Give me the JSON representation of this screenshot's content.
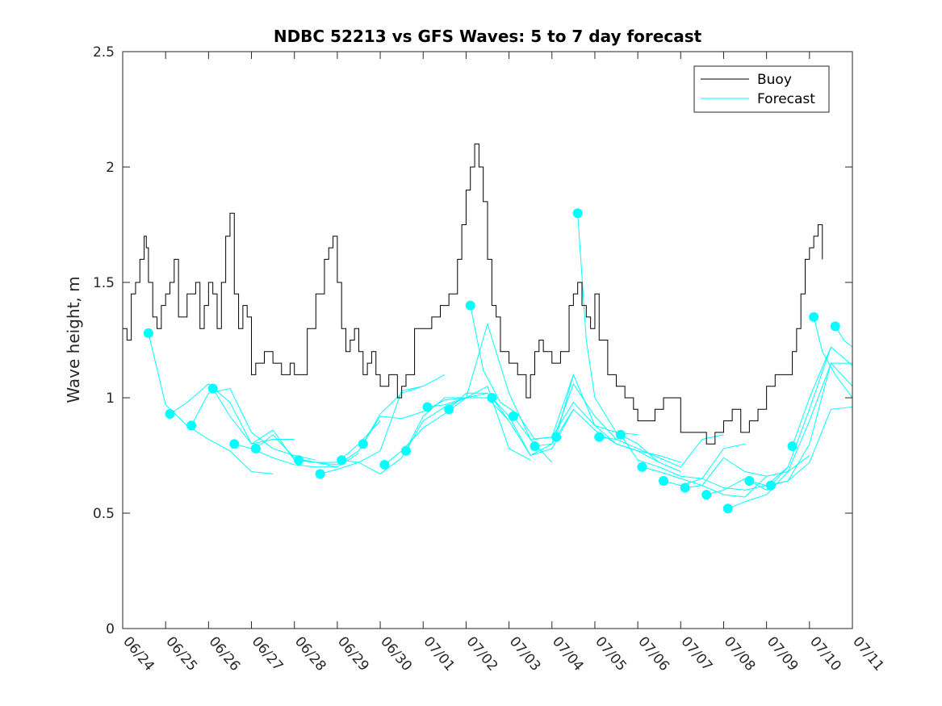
{
  "chart_data": {
    "type": "line",
    "title": "NDBC 52213 vs GFS Waves: 5 to 7 day forecast",
    "xlabel": "",
    "ylabel": "Wave height, m",
    "ylim": [
      0,
      2.5
    ],
    "yticks": [
      "0",
      "0.5",
      "1",
      "1.5",
      "2",
      "2.5"
    ],
    "xlim": [
      0,
      17
    ],
    "xticks": [
      "06/24",
      "06/25",
      "06/26",
      "06/27",
      "06/28",
      "06/29",
      "06/30",
      "07/01",
      "07/02",
      "07/03",
      "07/04",
      "07/05",
      "07/06",
      "07/07",
      "07/08",
      "07/09",
      "07/10",
      "07/11"
    ],
    "x_unit": "days since 06/24",
    "grid": false,
    "legend": {
      "position": "top-right",
      "entries": [
        "Buoy",
        "Forecast"
      ]
    },
    "colors": {
      "buoy": "#000000",
      "forecast": "#00ffff"
    },
    "series": [
      {
        "name": "Buoy",
        "x": [
          0,
          0.1,
          0.2,
          0.3,
          0.4,
          0.5,
          0.55,
          0.6,
          0.7,
          0.8,
          0.9,
          1.0,
          1.1,
          1.2,
          1.3,
          1.5,
          1.7,
          1.8,
          1.9,
          2.0,
          2.1,
          2.2,
          2.3,
          2.4,
          2.5,
          2.6,
          2.7,
          2.8,
          2.9,
          3.0,
          3.1,
          3.3,
          3.5,
          3.7,
          3.9,
          4.0,
          4.2,
          4.3,
          4.5,
          4.7,
          4.8,
          4.9,
          5.0,
          5.1,
          5.2,
          5.3,
          5.4,
          5.5,
          5.6,
          5.7,
          5.8,
          5.9,
          6.0,
          6.2,
          6.4,
          6.5,
          6.6,
          6.8,
          7.0,
          7.2,
          7.4,
          7.6,
          7.8,
          7.9,
          8.0,
          8.1,
          8.2,
          8.3,
          8.4,
          8.5,
          8.6,
          8.7,
          8.8,
          9.0,
          9.2,
          9.4,
          9.5,
          9.6,
          9.7,
          9.8,
          10.0,
          10.2,
          10.4,
          10.5,
          10.6,
          10.7,
          10.8,
          10.9,
          11.0,
          11.1,
          11.3,
          11.5,
          11.7,
          11.9,
          12.0,
          12.2,
          12.4,
          12.6,
          12.8,
          13.0,
          13.2,
          13.4,
          13.6,
          13.8,
          14.0,
          14.2,
          14.4,
          14.6,
          14.8,
          15.0,
          15.2,
          15.4,
          15.6,
          15.7,
          15.8,
          15.9,
          16.0,
          16.1,
          16.2,
          16.3
        ],
        "y": [
          1.3,
          1.25,
          1.45,
          1.5,
          1.6,
          1.7,
          1.65,
          1.5,
          1.35,
          1.3,
          1.4,
          1.45,
          1.5,
          1.6,
          1.35,
          1.45,
          1.5,
          1.3,
          1.4,
          1.5,
          1.45,
          1.3,
          1.5,
          1.7,
          1.8,
          1.45,
          1.3,
          1.4,
          1.35,
          1.1,
          1.15,
          1.2,
          1.15,
          1.1,
          1.15,
          1.1,
          1.1,
          1.3,
          1.45,
          1.6,
          1.65,
          1.7,
          1.5,
          1.3,
          1.2,
          1.25,
          1.3,
          1.2,
          1.1,
          1.15,
          1.2,
          1.1,
          1.05,
          1.1,
          1.0,
          1.05,
          1.1,
          1.3,
          1.3,
          1.35,
          1.4,
          1.45,
          1.6,
          1.75,
          1.9,
          2.0,
          2.1,
          2.0,
          1.85,
          1.6,
          1.4,
          1.35,
          1.2,
          1.15,
          1.1,
          1.0,
          1.1,
          1.2,
          1.25,
          1.2,
          1.15,
          1.2,
          1.4,
          1.45,
          1.5,
          1.4,
          1.35,
          1.3,
          1.45,
          1.25,
          1.1,
          1.05,
          1.0,
          0.95,
          0.9,
          0.9,
          0.95,
          1.0,
          1.0,
          0.85,
          0.85,
          0.85,
          0.8,
          0.85,
          0.9,
          0.95,
          0.85,
          0.9,
          0.95,
          1.05,
          1.1,
          1.1,
          1.2,
          1.3,
          1.45,
          1.6,
          1.65,
          1.7,
          1.75,
          1.6
        ]
      }
    ],
    "forecast_runs": [
      {
        "x": [
          0.6,
          1.0,
          1.5,
          2.0,
          2.5,
          3.0,
          3.5
        ],
        "y": [
          1.28,
          0.97,
          0.88,
          0.82,
          0.77,
          0.68,
          0.67
        ]
      },
      {
        "x": [
          1.1,
          1.5,
          2.0,
          2.5,
          3.0,
          3.5,
          4.0
        ],
        "y": [
          0.93,
          0.98,
          1.06,
          0.98,
          0.8,
          0.82,
          0.82
        ]
      },
      {
        "x": [
          1.6,
          2.0,
          2.5,
          3.0,
          3.5,
          4.0,
          4.5
        ],
        "y": [
          0.88,
          1.02,
          1.04,
          0.85,
          0.78,
          0.75,
          0.73
        ]
      },
      {
        "x": [
          2.1,
          2.5,
          3.0,
          3.5,
          4.0,
          4.5,
          5.0
        ],
        "y": [
          1.04,
          0.92,
          0.8,
          0.86,
          0.73,
          0.72,
          0.7
        ]
      },
      {
        "x": [
          2.6,
          3.0,
          3.5,
          4.0,
          4.5,
          5.0,
          5.5
        ],
        "y": [
          0.8,
          0.78,
          0.74,
          0.71,
          0.7,
          0.7,
          0.76
        ]
      },
      {
        "x": [
          3.1,
          3.5,
          4.0,
          4.5,
          5.0,
          5.5,
          6.0
        ],
        "y": [
          0.78,
          0.84,
          0.74,
          0.72,
          0.72,
          0.8,
          0.9
        ]
      },
      {
        "x": [
          4.1,
          4.5,
          5.0,
          5.5,
          6.0,
          6.5,
          7.0
        ],
        "y": [
          0.73,
          0.72,
          0.71,
          0.77,
          0.93,
          1.02,
          1.05
        ]
      },
      {
        "x": [
          4.6,
          5.0,
          5.5,
          6.0,
          6.5,
          7.0,
          7.5
        ],
        "y": [
          0.67,
          0.69,
          0.72,
          0.77,
          1.03,
          1.05,
          1.1
        ]
      },
      {
        "x": [
          5.1,
          5.5,
          6.0,
          6.5,
          7.0,
          7.5,
          8.0
        ],
        "y": [
          0.73,
          0.72,
          0.67,
          0.74,
          0.92,
          1.0,
          1.0
        ]
      },
      {
        "x": [
          5.6,
          6.0,
          6.5,
          7.0,
          7.5,
          8.0,
          8.5
        ],
        "y": [
          0.8,
          0.92,
          0.91,
          0.94,
          0.99,
          1.0,
          1.02
        ]
      },
      {
        "x": [
          6.1,
          6.5,
          7.0,
          7.5,
          8.0,
          8.5,
          9.0
        ],
        "y": [
          0.71,
          0.77,
          0.87,
          0.93,
          1.0,
          1.0,
          0.9
        ]
      },
      {
        "x": [
          6.6,
          7.0,
          7.5,
          8.0,
          8.5,
          9.0,
          9.5
        ],
        "y": [
          0.77,
          0.9,
          0.96,
          1.0,
          1.05,
          0.78,
          0.73
        ]
      },
      {
        "x": [
          7.1,
          7.5,
          8.0,
          8.5,
          9.0,
          9.5,
          10.0
        ],
        "y": [
          0.96,
          0.97,
          1.0,
          1.32,
          1.02,
          0.82,
          0.72
        ]
      },
      {
        "x": [
          7.6,
          8.0,
          8.5,
          9.0,
          9.5,
          10.0,
          10.5
        ],
        "y": [
          0.95,
          1.02,
          1.02,
          0.92,
          0.75,
          0.78,
          0.95
        ]
      },
      {
        "x": [
          8.1,
          8.4,
          8.8,
          9.2,
          9.6,
          10.0,
          10.5
        ],
        "y": [
          1.4,
          1.12,
          0.98,
          0.93,
          0.82,
          0.83,
          1.1
        ]
      },
      {
        "x": [
          8.6,
          9.0,
          9.5,
          10.0,
          10.5,
          11.0,
          11.5
        ],
        "y": [
          1.0,
          0.9,
          0.75,
          0.8,
          1.06,
          0.92,
          0.82
        ]
      },
      {
        "x": [
          9.1,
          9.5,
          10.0,
          10.5,
          11.0,
          11.5,
          12.0
        ],
        "y": [
          0.92,
          0.82,
          0.83,
          0.98,
          0.88,
          0.85,
          0.84
        ]
      },
      {
        "x": [
          9.6,
          10.0,
          10.5,
          11.0,
          11.5,
          12.0,
          12.5
        ],
        "y": [
          0.79,
          0.8,
          0.95,
          0.86,
          0.8,
          0.77,
          0.72
        ]
      },
      {
        "x": [
          10.1,
          10.5,
          11.0,
          11.5,
          12.0,
          12.5,
          13.0
        ],
        "y": [
          0.83,
          1.1,
          0.88,
          0.8,
          0.77,
          0.75,
          0.72
        ]
      },
      {
        "x": [
          10.6,
          10.8,
          11.0,
          11.5,
          12.0,
          12.5,
          13.0
        ],
        "y": [
          1.8,
          1.25,
          1.0,
          0.85,
          0.8,
          0.72,
          0.68
        ]
      },
      {
        "x": [
          11.1,
          11.5,
          12.0,
          12.5,
          13.0,
          13.5,
          14.0
        ],
        "y": [
          0.83,
          0.82,
          0.78,
          0.74,
          0.7,
          0.82,
          0.84
        ]
      },
      {
        "x": [
          11.6,
          12.0,
          12.5,
          13.0,
          13.5,
          14.0,
          14.5
        ],
        "y": [
          0.84,
          0.73,
          0.7,
          0.66,
          0.65,
          0.78,
          0.8
        ]
      },
      {
        "x": [
          12.1,
          12.5,
          13.0,
          13.5,
          14.0,
          14.5,
          15.0
        ],
        "y": [
          0.7,
          0.68,
          0.65,
          0.62,
          0.74,
          0.68,
          0.66
        ]
      },
      {
        "x": [
          12.6,
          13.0,
          13.5,
          14.0,
          14.5,
          15.0,
          15.5
        ],
        "y": [
          0.64,
          0.62,
          0.65,
          0.61,
          0.6,
          0.62,
          0.7
        ]
      },
      {
        "x": [
          13.1,
          13.5,
          14.0,
          14.5,
          15.0,
          15.5,
          16.0
        ],
        "y": [
          0.61,
          0.62,
          0.58,
          0.57,
          0.66,
          0.68,
          0.75
        ]
      },
      {
        "x": [
          13.6,
          14.0,
          14.5,
          15.0,
          15.5,
          16.0,
          16.5
        ],
        "y": [
          0.58,
          0.6,
          0.65,
          0.6,
          0.7,
          0.95,
          1.22
        ]
      },
      {
        "x": [
          14.1,
          14.5,
          15.0,
          15.5,
          16.0,
          16.5,
          17.0
        ],
        "y": [
          0.52,
          0.55,
          0.58,
          0.68,
          0.9,
          1.15,
          1.15
        ]
      },
      {
        "x": [
          14.6,
          15.0,
          15.5,
          16.0,
          16.5,
          17.0
        ],
        "y": [
          0.64,
          0.62,
          0.64,
          0.8,
          1.15,
          1.05
        ]
      },
      {
        "x": [
          15.1,
          15.5,
          16.0,
          16.5,
          17.0
        ],
        "y": [
          0.62,
          0.64,
          0.72,
          0.95,
          0.96
        ]
      },
      {
        "x": [
          15.6,
          16.0,
          16.5,
          17.0
        ],
        "y": [
          0.79,
          1.0,
          1.22,
          1.14
        ]
      },
      {
        "x": [
          16.1,
          16.3,
          16.6,
          17.0
        ],
        "y": [
          1.35,
          1.2,
          1.1,
          1.0
        ]
      },
      {
        "x": [
          16.6,
          16.8,
          17.0
        ],
        "y": [
          1.31,
          1.25,
          1.22
        ]
      }
    ]
  }
}
